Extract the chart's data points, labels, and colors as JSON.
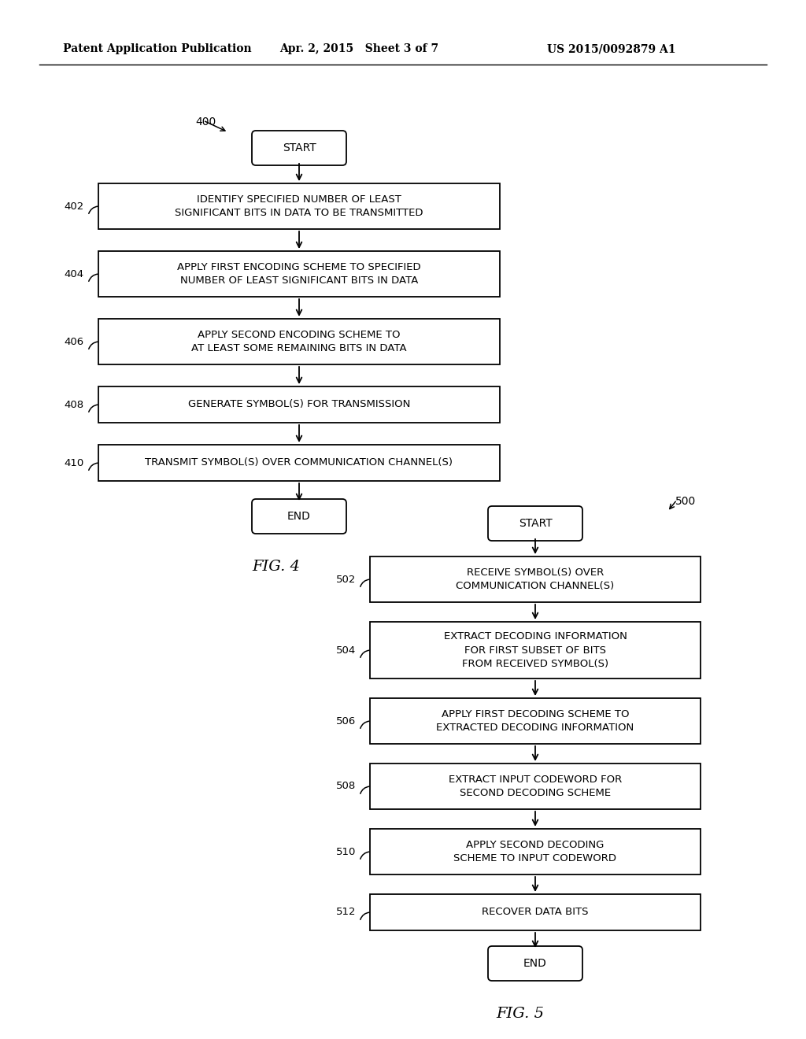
{
  "background_color": "#ffffff",
  "header_left": "Patent Application Publication",
  "header_center": "Apr. 2, 2015   Sheet 3 of 7",
  "header_right": "US 2015/0092879 A1",
  "fig4_label": "FIG. 4",
  "fig5_label": "FIG. 5",
  "fig4_ref": "400",
  "fig5_ref": "500",
  "fig4_start_text": "START",
  "fig4_end_text": "END",
  "fig5_start_text": "START",
  "fig5_end_text": "END",
  "fig4_steps": [
    {
      "label": "402",
      "text": "IDENTIFY SPECIFIED NUMBER OF LEAST\nSIGNIFICANT BITS IN DATA TO BE TRANSMITTED"
    },
    {
      "label": "404",
      "text": "APPLY FIRST ENCODING SCHEME TO SPECIFIED\nNUMBER OF LEAST SIGNIFICANT BITS IN DATA"
    },
    {
      "label": "406",
      "text": "APPLY SECOND ENCODING SCHEME TO\nAT LEAST SOME REMAINING BITS IN DATA"
    },
    {
      "label": "408",
      "text": "GENERATE SYMBOL(S) FOR TRANSMISSION"
    },
    {
      "label": "410",
      "text": "TRANSMIT SYMBOL(S) OVER COMMUNICATION CHANNEL(S)"
    }
  ],
  "fig5_steps": [
    {
      "label": "502",
      "text": "RECEIVE SYMBOL(S) OVER\nCOMMUNICATION CHANNEL(S)"
    },
    {
      "label": "504",
      "text": "EXTRACT DECODING INFORMATION\nFOR FIRST SUBSET OF BITS\nFROM RECEIVED SYMBOL(S)"
    },
    {
      "label": "506",
      "text": "APPLY FIRST DECODING SCHEME TO\nEXTRACTED DECODING INFORMATION"
    },
    {
      "label": "508",
      "text": "EXTRACT INPUT CODEWORD FOR\nSECOND DECODING SCHEME"
    },
    {
      "label": "510",
      "text": "APPLY SECOND DECODING\nSCHEME TO INPUT CODEWORD"
    },
    {
      "label": "512",
      "text": "RECOVER DATA BITS"
    }
  ]
}
